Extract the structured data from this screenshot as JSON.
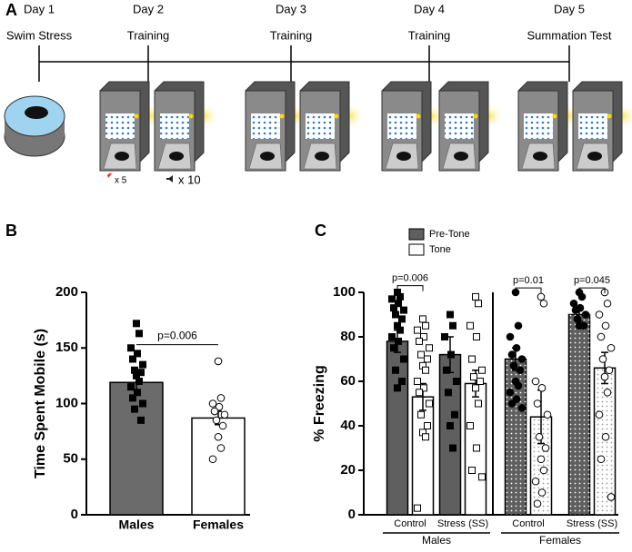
{
  "panel_labels": [
    "A",
    "B",
    "C"
  ],
  "timeline": {
    "days": [
      {
        "day": "Day 1",
        "label": "Swim Stress"
      },
      {
        "day": "Day 2",
        "label": "Training"
      },
      {
        "day": "Day 3",
        "label": "Training"
      },
      {
        "day": "Day 4",
        "label": "Training"
      },
      {
        "day": "Day 5",
        "label": "Summation Test"
      }
    ],
    "shock_note": "x 5",
    "tone_note": "x 10"
  },
  "chart_data": [
    {
      "type": "bar",
      "y_label": "Time Spent Mobile  (s)",
      "categories": [
        "Males",
        "Females"
      ],
      "values": [
        119,
        87
      ],
      "errors": [
        7,
        6
      ],
      "colors": [
        "#6b6b6b",
        "#ffffff"
      ],
      "points": [
        [
          172,
          163,
          150,
          145,
          140,
          135,
          130,
          128,
          125,
          120,
          115,
          110,
          105,
          100,
          95,
          85
        ],
        [
          138,
          105,
          100,
          97,
          93,
          90,
          85,
          80,
          70,
          60,
          50
        ]
      ],
      "markers": [
        "square",
        "circle"
      ],
      "ylim": [
        0,
        200
      ],
      "yticks": [
        0,
        50,
        100,
        150,
        200
      ],
      "annotations": [
        "p=0.006"
      ]
    },
    {
      "type": "grouped_bar",
      "y_label": "% Freezing",
      "categories": [
        "Control",
        "Stress (SS)",
        "Control",
        "Stress (SS)"
      ],
      "group_labels": [
        "Males",
        "Females"
      ],
      "markers": [
        "square",
        "square",
        "circle",
        "circle"
      ],
      "dotted": [
        false,
        false,
        true,
        true
      ],
      "series": [
        {
          "name": "Pre-Tone",
          "color": "#5f5f5f",
          "values": [
            78,
            72,
            70,
            90
          ],
          "errors": [
            5,
            8,
            5,
            3
          ],
          "points": [
            [
              100,
              98,
              97,
              95,
              93,
              92,
              90,
              88,
              85,
              83,
              80,
              78,
              75,
              70,
              65,
              60,
              57
            ],
            [
              90,
              85,
              80,
              72,
              65,
              60,
              55,
              45,
              40,
              30
            ],
            [
              100,
              85,
              80,
              75,
              72,
              70,
              67,
              65,
              60,
              58,
              55,
              52,
              50,
              48
            ],
            [
              100,
              98,
              95,
              93,
              92,
              90,
              88,
              85,
              85
            ]
          ]
        },
        {
          "name": "Tone",
          "color": "#ffffff",
          "values": [
            53,
            59,
            44,
            66
          ],
          "errors": [
            6,
            6,
            12,
            7
          ],
          "points": [
            [
              88,
              85,
              83,
              80,
              78,
              75,
              72,
              70,
              67,
              65,
              60,
              57,
              55,
              50,
              45,
              40,
              37,
              35,
              3
            ],
            [
              98,
              95,
              85,
              80,
              70,
              65,
              62,
              60,
              57,
              50,
              40,
              30,
              20,
              17
            ],
            [
              98,
              95,
              60,
              57,
              50,
              45,
              35,
              30,
              25,
              20,
              15,
              10,
              5
            ],
            [
              100,
              95,
              90,
              85,
              80,
              75,
              70,
              65,
              62,
              55,
              45,
              35,
              25,
              8
            ]
          ]
        }
      ],
      "ylim": [
        0,
        100
      ],
      "yticks": [
        0,
        20,
        40,
        60,
        80,
        100
      ],
      "annotations": [
        "p=0.006",
        "p=0.01",
        "p=0.045"
      ]
    }
  ]
}
